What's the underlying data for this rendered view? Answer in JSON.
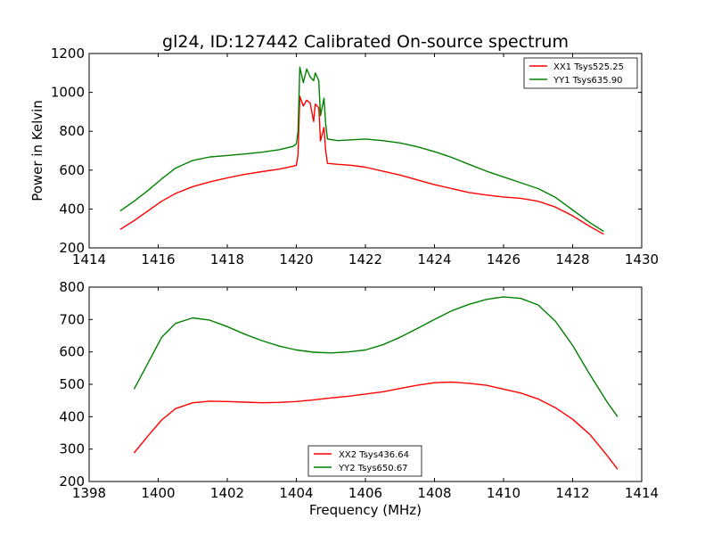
{
  "chart_data": [
    {
      "type": "line",
      "title": "gl24, ID:127442 Calibrated On-source spectrum",
      "xlabel": "",
      "ylabel": "Power in Kelvin",
      "xlim": [
        1414,
        1430
      ],
      "ylim": [
        200,
        1200
      ],
      "xticks": [
        1414,
        1416,
        1418,
        1420,
        1422,
        1424,
        1426,
        1428,
        1430
      ],
      "yticks": [
        200,
        400,
        600,
        800,
        1000,
        1200
      ],
      "legend_position": "top-right",
      "series": [
        {
          "name": "XX1 Tsys525.25",
          "color": "#ff0000",
          "points": [
            [
              1414.9,
              295
            ],
            [
              1415.3,
              340
            ],
            [
              1415.7,
              390
            ],
            [
              1416.1,
              440
            ],
            [
              1416.5,
              480
            ],
            [
              1417.0,
              515
            ],
            [
              1417.5,
              540
            ],
            [
              1418.0,
              560
            ],
            [
              1418.5,
              578
            ],
            [
              1419.0,
              592
            ],
            [
              1419.5,
              605
            ],
            [
              1419.9,
              620
            ],
            [
              1420.0,
              625
            ],
            [
              1420.05,
              680
            ],
            [
              1420.1,
              980
            ],
            [
              1420.2,
              930
            ],
            [
              1420.3,
              960
            ],
            [
              1420.4,
              945
            ],
            [
              1420.5,
              850
            ],
            [
              1420.55,
              940
            ],
            [
              1420.65,
              920
            ],
            [
              1420.7,
              750
            ],
            [
              1420.8,
              820
            ],
            [
              1420.85,
              700
            ],
            [
              1420.9,
              635
            ],
            [
              1421.2,
              630
            ],
            [
              1421.6,
              625
            ],
            [
              1422.0,
              615
            ],
            [
              1422.5,
              595
            ],
            [
              1423.0,
              575
            ],
            [
              1423.5,
              550
            ],
            [
              1424.0,
              525
            ],
            [
              1424.5,
              505
            ],
            [
              1425.0,
              485
            ],
            [
              1425.5,
              472
            ],
            [
              1426.0,
              462
            ],
            [
              1426.5,
              455
            ],
            [
              1427.0,
              440
            ],
            [
              1427.5,
              410
            ],
            [
              1428.0,
              365
            ],
            [
              1428.5,
              310
            ],
            [
              1428.9,
              270
            ]
          ]
        },
        {
          "name": "YY1 Tsys635.90",
          "color": "#008000",
          "points": [
            [
              1414.9,
              390
            ],
            [
              1415.3,
              440
            ],
            [
              1415.7,
              495
            ],
            [
              1416.1,
              555
            ],
            [
              1416.5,
              610
            ],
            [
              1417.0,
              650
            ],
            [
              1417.5,
              668
            ],
            [
              1418.0,
              675
            ],
            [
              1418.5,
              683
            ],
            [
              1419.0,
              692
            ],
            [
              1419.5,
              705
            ],
            [
              1419.9,
              722
            ],
            [
              1420.0,
              735
            ],
            [
              1420.05,
              800
            ],
            [
              1420.1,
              1130
            ],
            [
              1420.2,
              1050
            ],
            [
              1420.3,
              1120
            ],
            [
              1420.4,
              1080
            ],
            [
              1420.5,
              1060
            ],
            [
              1420.55,
              1100
            ],
            [
              1420.65,
              1060
            ],
            [
              1420.7,
              880
            ],
            [
              1420.8,
              970
            ],
            [
              1420.85,
              840
            ],
            [
              1420.9,
              760
            ],
            [
              1421.2,
              752
            ],
            [
              1421.6,
              756
            ],
            [
              1422.0,
              760
            ],
            [
              1422.5,
              752
            ],
            [
              1423.0,
              740
            ],
            [
              1423.5,
              720
            ],
            [
              1424.0,
              695
            ],
            [
              1424.5,
              665
            ],
            [
              1425.0,
              630
            ],
            [
              1425.5,
              595
            ],
            [
              1426.0,
              565
            ],
            [
              1426.5,
              535
            ],
            [
              1427.0,
              505
            ],
            [
              1427.5,
              460
            ],
            [
              1428.0,
              395
            ],
            [
              1428.5,
              330
            ],
            [
              1428.9,
              285
            ]
          ]
        }
      ]
    },
    {
      "type": "line",
      "title": "",
      "xlabel": "Frequency (MHz)",
      "ylabel": "",
      "xlim": [
        1398,
        1414
      ],
      "ylim": [
        200,
        800
      ],
      "xticks": [
        1398,
        1400,
        1402,
        1404,
        1406,
        1408,
        1410,
        1412,
        1414
      ],
      "yticks": [
        200,
        300,
        400,
        500,
        600,
        700,
        800
      ],
      "legend_position": "bottom-center",
      "series": [
        {
          "name": "XX2 Tsys436.64",
          "color": "#ff0000",
          "points": [
            [
              1399.3,
              288
            ],
            [
              1399.7,
              340
            ],
            [
              1400.1,
              390
            ],
            [
              1400.5,
              425
            ],
            [
              1401.0,
              443
            ],
            [
              1401.5,
              448
            ],
            [
              1402.0,
              447
            ],
            [
              1402.5,
              445
            ],
            [
              1403.0,
              443
            ],
            [
              1403.5,
              444
            ],
            [
              1404.0,
              447
            ],
            [
              1404.5,
              452
            ],
            [
              1405.0,
              458
            ],
            [
              1405.5,
              463
            ],
            [
              1406.0,
              470
            ],
            [
              1406.5,
              477
            ],
            [
              1407.0,
              487
            ],
            [
              1407.5,
              497
            ],
            [
              1408.0,
              505
            ],
            [
              1408.5,
              507
            ],
            [
              1409.0,
              503
            ],
            [
              1409.5,
              497
            ],
            [
              1410.0,
              485
            ],
            [
              1410.5,
              473
            ],
            [
              1411.0,
              455
            ],
            [
              1411.5,
              428
            ],
            [
              1412.0,
              392
            ],
            [
              1412.5,
              345
            ],
            [
              1413.0,
              280
            ],
            [
              1413.3,
              238
            ]
          ]
        },
        {
          "name": "YY2 Tsys650.67",
          "color": "#008000",
          "points": [
            [
              1399.3,
              485
            ],
            [
              1399.7,
              565
            ],
            [
              1400.1,
              645
            ],
            [
              1400.5,
              688
            ],
            [
              1401.0,
              705
            ],
            [
              1401.5,
              698
            ],
            [
              1402.0,
              678
            ],
            [
              1402.5,
              655
            ],
            [
              1403.0,
              635
            ],
            [
              1403.5,
              618
            ],
            [
              1404.0,
              606
            ],
            [
              1404.5,
              599
            ],
            [
              1405.0,
              597
            ],
            [
              1405.5,
              600
            ],
            [
              1406.0,
              606
            ],
            [
              1406.5,
              622
            ],
            [
              1407.0,
              645
            ],
            [
              1407.5,
              672
            ],
            [
              1408.0,
              700
            ],
            [
              1408.5,
              727
            ],
            [
              1409.0,
              747
            ],
            [
              1409.5,
              762
            ],
            [
              1410.0,
              770
            ],
            [
              1410.5,
              765
            ],
            [
              1411.0,
              745
            ],
            [
              1411.5,
              695
            ],
            [
              1412.0,
              620
            ],
            [
              1412.5,
              530
            ],
            [
              1413.0,
              445
            ],
            [
              1413.3,
              400
            ]
          ]
        }
      ]
    }
  ]
}
